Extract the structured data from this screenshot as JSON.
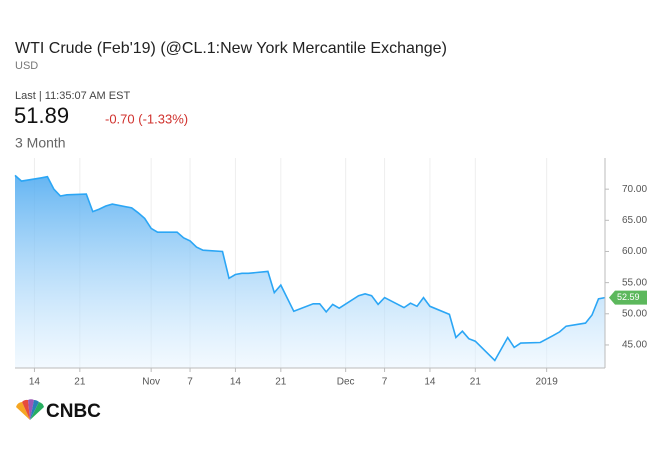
{
  "header": {
    "title": "WTI Crude (Feb'19) (@CL.1:New York Mercantile Exchange)",
    "currency": "USD",
    "last": "Last | 11:35:07 AM EST",
    "price": "51.89",
    "change": "-0.70 (-1.33%)",
    "range": "3 Month"
  },
  "logo": "CNBC",
  "chart_data": {
    "type": "area",
    "x": [
      "2018-10-11",
      "2018-10-12",
      "2018-10-15",
      "2018-10-16",
      "2018-10-17",
      "2018-10-18",
      "2018-10-19",
      "2018-10-22",
      "2018-10-23",
      "2018-10-24",
      "2018-10-25",
      "2018-10-26",
      "2018-10-29",
      "2018-10-30",
      "2018-10-31",
      "2018-11-01",
      "2018-11-02",
      "2018-11-05",
      "2018-11-06",
      "2018-11-07",
      "2018-11-08",
      "2018-11-09",
      "2018-11-12",
      "2018-11-13",
      "2018-11-14",
      "2018-11-15",
      "2018-11-16",
      "2018-11-19",
      "2018-11-20",
      "2018-11-21",
      "2018-11-23",
      "2018-11-26",
      "2018-11-27",
      "2018-11-28",
      "2018-11-29",
      "2018-11-30",
      "2018-12-03",
      "2018-12-04",
      "2018-12-05",
      "2018-12-06",
      "2018-12-07",
      "2018-12-10",
      "2018-12-11",
      "2018-12-12",
      "2018-12-13",
      "2018-12-14",
      "2018-12-17",
      "2018-12-18",
      "2018-12-19",
      "2018-12-20",
      "2018-12-21",
      "2018-12-24",
      "2018-12-26",
      "2018-12-27",
      "2018-12-28",
      "2018-12-31",
      "2019-01-02",
      "2019-01-03",
      "2019-01-04",
      "2019-01-07",
      "2019-01-08",
      "2019-01-09",
      "2019-01-10"
    ],
    "series": [
      {
        "name": "WTI Crude",
        "color": "#2ba6f5",
        "values": [
          72.2,
          71.3,
          71.8,
          72.0,
          70.0,
          68.9,
          69.1,
          69.2,
          66.4,
          66.8,
          67.3,
          67.6,
          67.0,
          66.2,
          65.3,
          63.7,
          63.1,
          63.1,
          62.2,
          61.7,
          60.7,
          60.2,
          60.0,
          55.7,
          56.3,
          56.5,
          56.5,
          56.8,
          53.4,
          54.6,
          50.4,
          51.6,
          51.6,
          50.3,
          51.5,
          50.9,
          52.9,
          53.2,
          52.9,
          51.5,
          52.6,
          51.0,
          51.7,
          51.2,
          52.6,
          51.2,
          49.9,
          46.2,
          47.2,
          46.0,
          45.6,
          42.5,
          46.2,
          44.6,
          45.3,
          45.4,
          46.5,
          47.1,
          48.0,
          48.5,
          49.8,
          52.4,
          52.59
        ]
      }
    ],
    "current_price": 52.59,
    "xlim": [
      "2018-10-11",
      "2019-01-10"
    ],
    "xticks": [
      {
        "value": "2018-10-14",
        "label": "14"
      },
      {
        "value": "2018-10-21",
        "label": "21"
      },
      {
        "value": "2018-11-01",
        "label": "Nov"
      },
      {
        "value": "2018-11-07",
        "label": "7"
      },
      {
        "value": "2018-11-14",
        "label": "14"
      },
      {
        "value": "2018-11-21",
        "label": "21"
      },
      {
        "value": "2018-12-01",
        "label": "Dec"
      },
      {
        "value": "2018-12-07",
        "label": "7"
      },
      {
        "value": "2018-12-14",
        "label": "14"
      },
      {
        "value": "2018-12-21",
        "label": "21"
      },
      {
        "value": "2019-01-01",
        "label": "2019"
      }
    ],
    "ylim": [
      41.3,
      75
    ],
    "yticks": [
      {
        "value": 45,
        "label": "45.00"
      },
      {
        "value": 50,
        "label": "50.00"
      },
      {
        "value": 55,
        "label": "55.00"
      },
      {
        "value": 60,
        "label": "60.00"
      },
      {
        "value": 65,
        "label": "65.00"
      },
      {
        "value": 70,
        "label": "70.00"
      }
    ],
    "grid": true
  }
}
